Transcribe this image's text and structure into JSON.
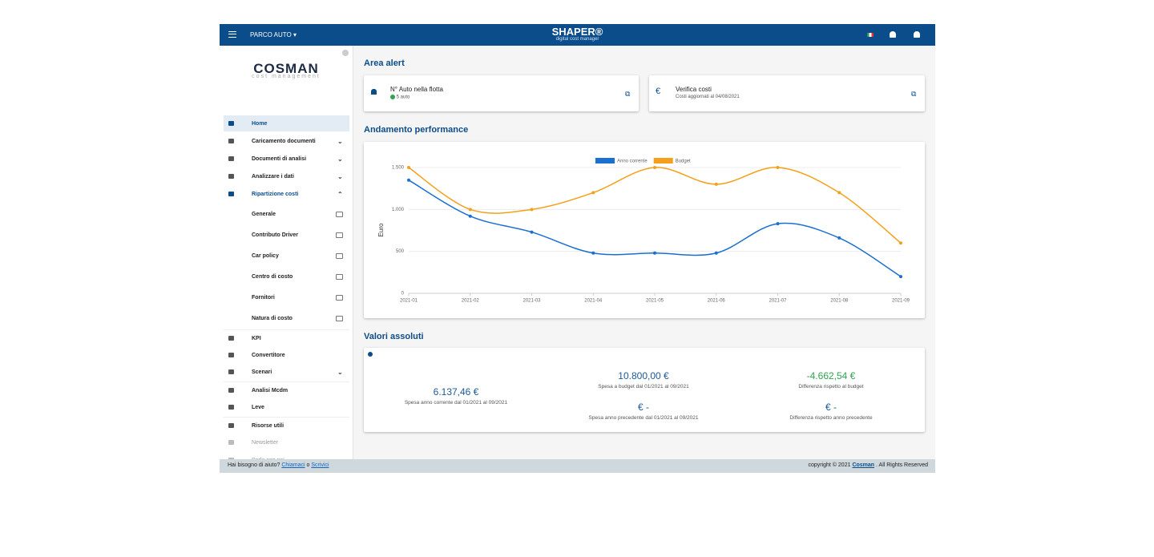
{
  "header": {
    "menu": "PARCO AUTO",
    "brand": "SHAPER®",
    "tagline": "digital cost manager"
  },
  "logo": {
    "name": "COSMAN",
    "subtitle": "cost management"
  },
  "sidebar": {
    "items": [
      "Home",
      "Caricamento documenti",
      "Documenti di analisi",
      "Analizzare i dati",
      "Ripartizione costi",
      "Generale",
      "Contributo Driver",
      "Car policy",
      "Centro di costo",
      "Fornitori",
      "Natura di costo",
      "KPI",
      "Convertitore",
      "Scenari",
      "Analisi Mcdm",
      "Leve",
      "Risorse utili",
      "Newsletter",
      "Parla con noi"
    ]
  },
  "alerts": {
    "title": "Area alert",
    "cards": [
      {
        "title": "N° Auto nella flotta",
        "detail": "5 auto"
      },
      {
        "title": "Verifica costi",
        "detail": "Costi aggiornati al 04/08/2021"
      }
    ]
  },
  "performance": {
    "title": "Andamento performance"
  },
  "chart_data": {
    "type": "line",
    "y_label": "Euro",
    "x": [
      "2021-01",
      "2021-02",
      "2021-03",
      "2021-04",
      "2021-05",
      "2021-06",
      "2021-07",
      "2021-08",
      "2021-09"
    ],
    "series": [
      {
        "name": "Anno corrente",
        "color": "#1a6fd0",
        "values": [
          1350,
          920,
          730,
          480,
          480,
          480,
          830,
          660,
          200
        ]
      },
      {
        "name": "Budget",
        "color": "#f4a01b",
        "values": [
          1500,
          1000,
          1000,
          1200,
          1500,
          1300,
          1500,
          1200,
          600
        ]
      }
    ],
    "ylim": [
      0,
      1500
    ],
    "yticks": [
      0,
      500,
      {
        "value": 1000,
        "label": "1.000"
      },
      {
        "value": 1500,
        "label": "1.500"
      }
    ],
    "grid": true,
    "smooth": true
  },
  "absolute": {
    "title": "Valori assoluti",
    "items": [
      {
        "value": "6.137,46 €",
        "label": "Spesa anno corrente dal 01/2021 al 09/2021"
      },
      {
        "value": "10.800,00 €",
        "label": "Spesa a budget dal 01/2021 al 09/2021"
      },
      {
        "value": "-4.662,54 €",
        "label": "Differenza rispetto al budget"
      },
      {
        "value": "€ -",
        "label": "Spesa anno precedente dal 01/2021 al 09/2021"
      },
      {
        "value": "€ -",
        "label": "Differenza rispetto anno precedente"
      }
    ]
  },
  "footer": {
    "help": "Hai bisogno di aiuto?",
    "call": "Chiamaci",
    "or": "o",
    "write": "Scrivici",
    "copyright": "copyright © 2021",
    "company": "Cosman",
    ". All Rights Reserved": ". All Rights Reserved",
    "rights": ". All Rights Reserved"
  }
}
